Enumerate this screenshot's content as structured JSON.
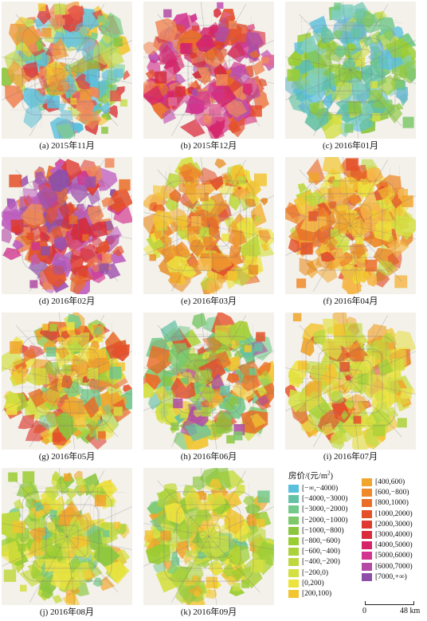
{
  "panels": [
    {
      "caption": "(a) 2015年11月",
      "scheme": "mixed_cool"
    },
    {
      "caption": "(b) 2015年12月",
      "scheme": "hot_magenta"
    },
    {
      "caption": "(c) 2016年01月",
      "scheme": "cool"
    },
    {
      "caption": "(d) 2016年02月",
      "scheme": "hot_purple"
    },
    {
      "caption": "(e) 2016年03月",
      "scheme": "warm_orange"
    },
    {
      "caption": "(f) 2016年04月",
      "scheme": "warm_orange"
    },
    {
      "caption": "(g) 2016年05月",
      "scheme": "mixed_warm"
    },
    {
      "caption": "(h) 2016年06月",
      "scheme": "mixed_green"
    },
    {
      "caption": "(i) 2016年07月",
      "scheme": "yellow"
    },
    {
      "caption": "(j) 2016年08月",
      "scheme": "yellow_green"
    },
    {
      "caption": "(k) 2016年09月",
      "scheme": "yellow_green"
    }
  ],
  "legend": {
    "title": "房价/(元/m",
    "title_sup": "2",
    "title_end": ")",
    "items": [
      {
        "label": "[−∞,−4000)",
        "color": "#5bc0de"
      },
      {
        "label": "[−4000,−3000)",
        "color": "#66c2a4"
      },
      {
        "label": "[−3000,−2000)",
        "color": "#74c98a"
      },
      {
        "label": "[−2000,−1000)",
        "color": "#7cc86a"
      },
      {
        "label": "[−1000,−800)",
        "color": "#8cc63f"
      },
      {
        "label": "[−800,−600)",
        "color": "#9acd32"
      },
      {
        "label": "[−600,−400)",
        "color": "#abd23a"
      },
      {
        "label": "[−400,−200)",
        "color": "#bfd83f"
      },
      {
        "label": "[−200,0)",
        "color": "#d4df42"
      },
      {
        "label": "[0,200)",
        "color": "#ece33f"
      },
      {
        "label": "[200,100)",
        "color": "#f2c531"
      },
      {
        "label": "[400,600)",
        "color": "#f0a52c"
      },
      {
        "label": "[600,−800)",
        "color": "#ee8a2a"
      },
      {
        "label": "[800,1000)",
        "color": "#ea6d28"
      },
      {
        "label": "[1000,2000)",
        "color": "#e4502a"
      },
      {
        "label": "[2000,3000)",
        "color": "#de3a30"
      },
      {
        "label": "[3000,4000)",
        "color": "#d92b3c"
      },
      {
        "label": "[4000,5000)",
        "color": "#d6246a"
      },
      {
        "label": "[5000,6000)",
        "color": "#d2348f"
      },
      {
        "label": "[6000,7000)",
        "color": "#b24aa6"
      },
      {
        "label": "[7000,+∞)",
        "color": "#8e4fa8"
      }
    ],
    "scale": {
      "zero": "0",
      "max": "48 km"
    }
  }
}
